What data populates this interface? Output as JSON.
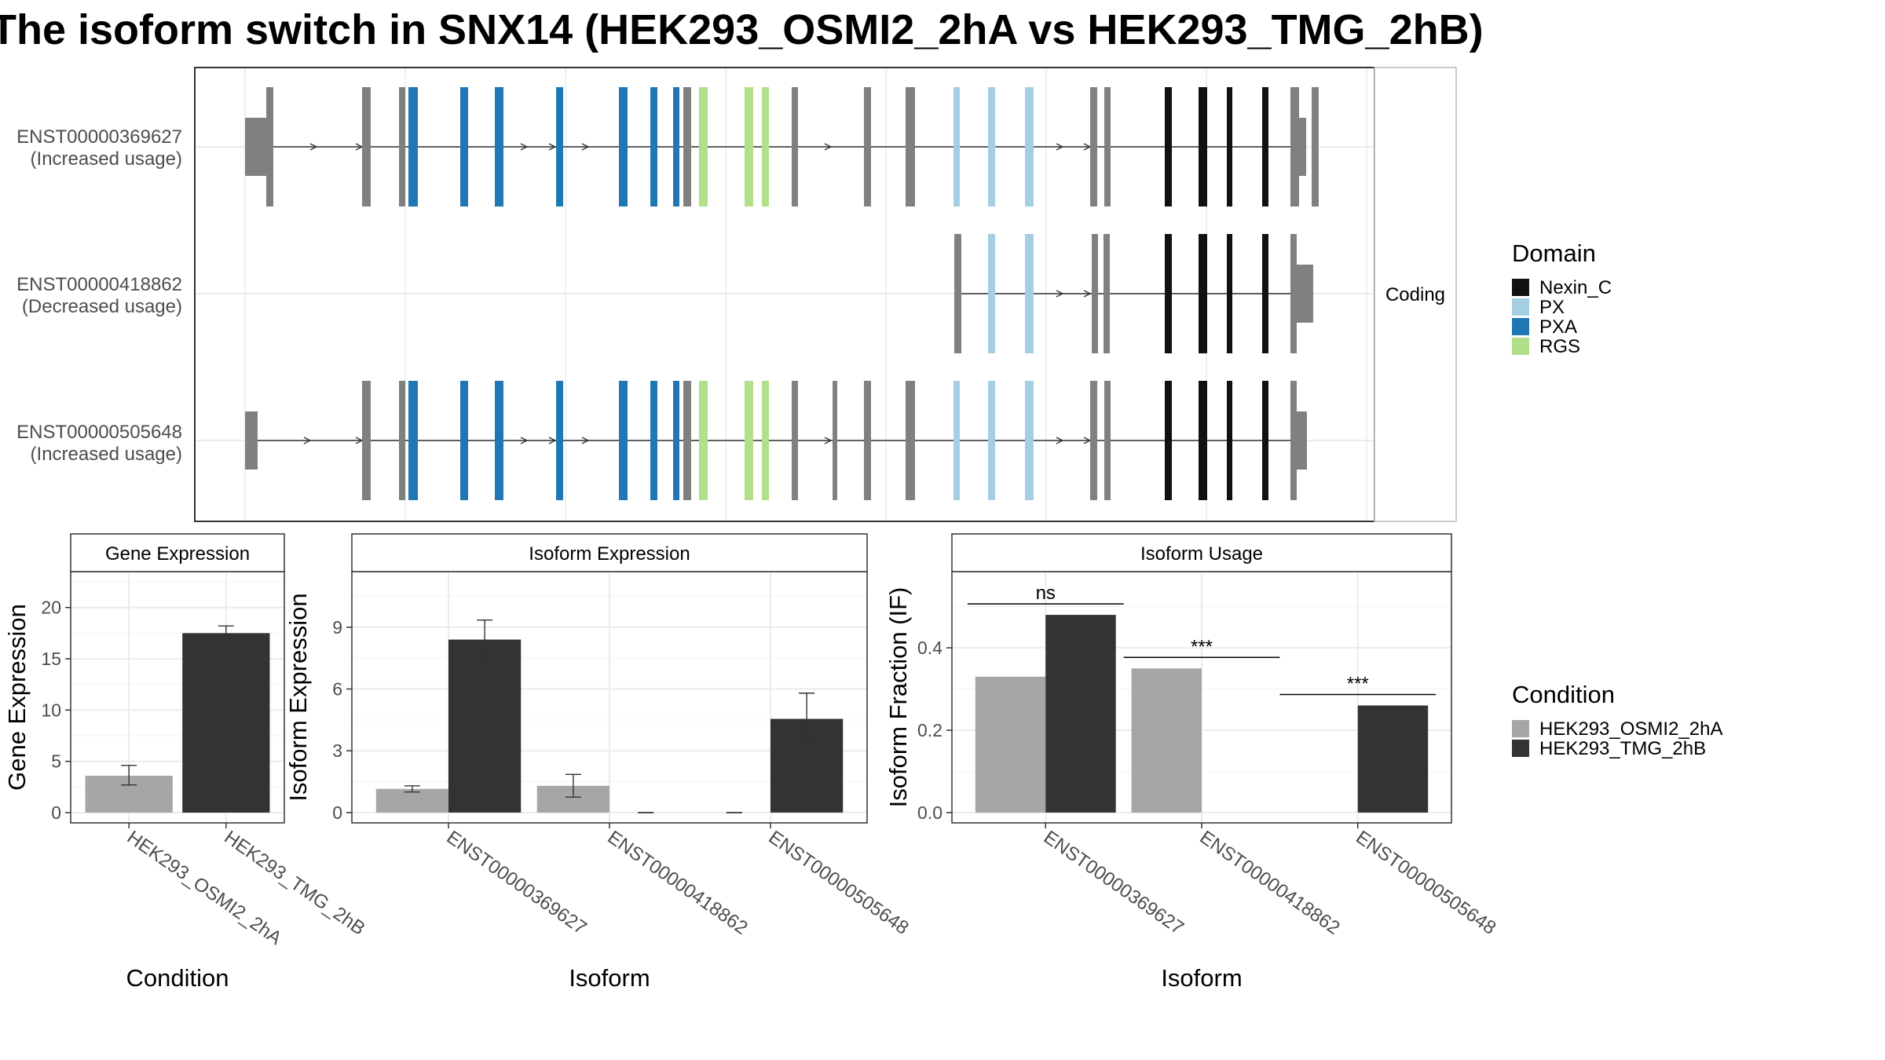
{
  "title": "The isoform switch in SNX14 (HEK293_OSMI2_2hA vs HEK293_TMG_2hB)",
  "colors": {
    "grid": "#ebebeb",
    "panel_border": "#333333",
    "strip_fill": "#ffffff",
    "exon_noncoding": "#808080",
    "condition_a": "#a6a6a6",
    "condition_b": "#333333"
  },
  "transcript_panel": {
    "facet_label": "Coding",
    "transcripts": [
      {
        "id": "ENST00000369627",
        "note": "(Increased usage)"
      },
      {
        "id": "ENST00000418862",
        "note": "(Decreased usage)"
      },
      {
        "id": "ENST00000505648",
        "note": "(Increased usage)"
      }
    ]
  },
  "domain_legend": {
    "title": "Domain",
    "items": [
      {
        "label": "Nexin_C",
        "color": "#111111"
      },
      {
        "label": "PX",
        "color": "#a6cee3"
      },
      {
        "label": "PXA",
        "color": "#1f78b4"
      },
      {
        "label": "RGS",
        "color": "#b2df8a"
      }
    ]
  },
  "condition_legend": {
    "title": "Condition",
    "items": [
      {
        "label": "HEK293_OSMI2_2hA",
        "color": "#a6a6a6"
      },
      {
        "label": "HEK293_TMG_2hB",
        "color": "#333333"
      }
    ]
  },
  "chart_data": [
    {
      "type": "bar",
      "title": "Gene Expression",
      "xlabel": "Condition",
      "ylabel": "Gene Expression",
      "categories": [
        "HEK293_OSMI2_2hA",
        "HEK293_TMG_2hB"
      ],
      "values": [
        3.6,
        17.5
      ],
      "error_low": [
        2.7,
        16.8
      ],
      "error_high": [
        4.6,
        18.2
      ],
      "ylim": [
        -1,
        23.5
      ],
      "yticks": [
        0,
        5,
        10,
        15,
        20
      ],
      "grid": true
    },
    {
      "type": "bar",
      "title": "Isoform Expression",
      "xlabel": "Isoform",
      "ylabel": "Isoform Expression",
      "categories": [
        "ENST00000369627",
        "ENST00000418862",
        "ENST00000505648"
      ],
      "series": [
        {
          "name": "HEK293_OSMI2_2hA",
          "values": [
            1.15,
            1.3,
            0
          ],
          "error_low": [
            1.0,
            0.75,
            0
          ],
          "error_high": [
            1.3,
            1.85,
            0
          ]
        },
        {
          "name": "HEK293_TMG_2hB",
          "values": [
            8.4,
            0,
            4.55
          ],
          "error_low": [
            7.4,
            0,
            3.35
          ],
          "error_high": [
            9.35,
            0,
            5.8
          ]
        }
      ],
      "ylim": [
        -0.5,
        11.7
      ],
      "yticks": [
        0,
        3,
        6,
        9
      ],
      "grid": true
    },
    {
      "type": "bar",
      "title": "Isoform Usage",
      "xlabel": "Isoform",
      "ylabel": "Isoform Fraction (IF)",
      "categories": [
        "ENST00000369627",
        "ENST00000418862",
        "ENST00000505648"
      ],
      "series": [
        {
          "name": "HEK293_OSMI2_2hA",
          "values": [
            0.33,
            0.35,
            0
          ]
        },
        {
          "name": "HEK293_TMG_2hB",
          "values": [
            0.48,
            0,
            0.26
          ]
        }
      ],
      "significance": [
        "ns",
        "***",
        "***"
      ],
      "ylim": [
        -0.025,
        0.585
      ],
      "yticks": [
        0.0,
        0.2,
        0.4
      ],
      "ytick_labels": [
        "0.0",
        "0.2",
        "0.4"
      ],
      "grid": true
    }
  ]
}
